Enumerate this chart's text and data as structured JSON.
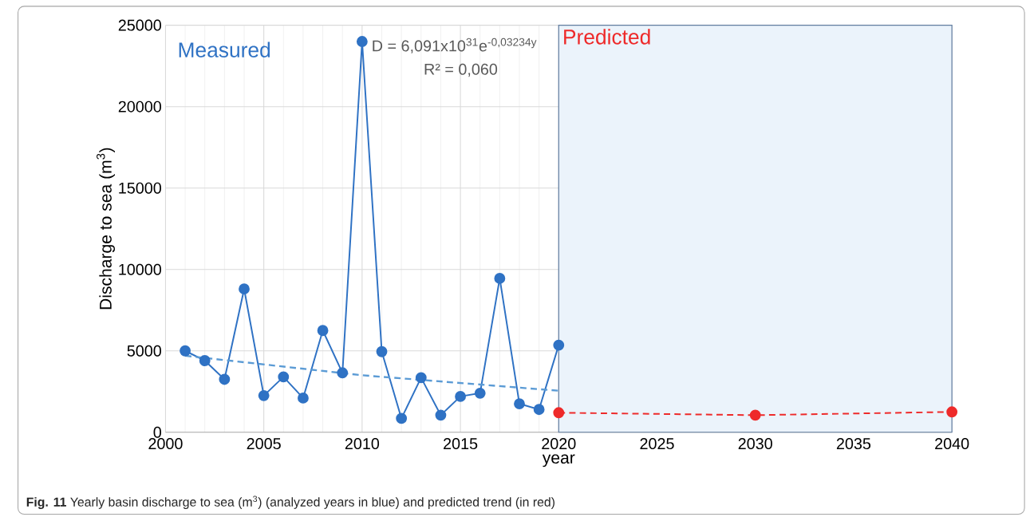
{
  "chart_data": {
    "type": "line",
    "xlabel": "year",
    "ylabel": "Discharge to sea (m$^{3}$)",
    "xlim": [
      2000,
      2040
    ],
    "ylim": [
      0,
      25000
    ],
    "xticks": [
      2000,
      2005,
      2010,
      2015,
      2020,
      2025,
      2030,
      2035,
      2040
    ],
    "yticks": [
      0,
      5000,
      10000,
      15000,
      20000,
      25000
    ],
    "grid": true,
    "marker": "circle",
    "series": [
      {
        "color": "#2f72c4",
        "line_style": "solid",
        "x": [
          2001,
          2002,
          2003,
          2004,
          2005,
          2006,
          2007,
          2008,
          2009,
          2010,
          2011,
          2012,
          2013,
          2014,
          2015,
          2016,
          2017,
          2018,
          2019,
          2020
        ],
        "values": [
          5000,
          4400,
          3250,
          8800,
          2250,
          3400,
          2100,
          6250,
          3650,
          24000,
          4950,
          850,
          3350,
          1050,
          2200,
          2400,
          9450,
          1750,
          1400,
          5350
        ]
      },
      {
        "type": "line",
        "color": "#5b9bd5",
        "line_style": "dashed",
        "marker": "none",
        "x": [
          2001,
          2010,
          2020
        ],
        "values": [
          4700,
          3500,
          2550
        ]
      },
      {
        "color": "#ee2a2a",
        "line_style": "dashed",
        "x": [
          2020,
          2030,
          2040
        ],
        "values": [
          1200,
          1050,
          1250
        ]
      }
    ],
    "bands": [
      {
        "axis": "x",
        "from": 2020,
        "to": 2040,
        "label": "Predicted",
        "color": "#ebf3fb"
      }
    ],
    "annotations": [
      "Measured",
      "D = 6,091x10$^{31}$e$^{-0,03234y}$",
      "R² = 0,060",
      "**Fig. 11** Yearly basin discharge to sea (m$^{3}$) (analyzed years in blue) and predicted trend (in red)"
    ]
  }
}
